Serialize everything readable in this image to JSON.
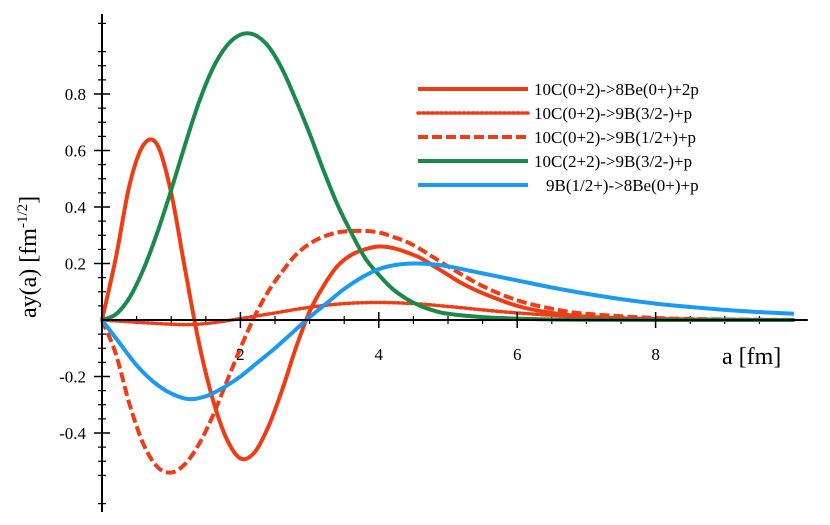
{
  "chart_data": {
    "type": "line",
    "xlabel": "a [fm]",
    "ylabel_main": "ay(a) [fm",
    "ylabel_exp": "-1/2",
    "ylabel_close": "]",
    "xlim": [
      0,
      10
    ],
    "ylim": [
      -0.6,
      1.0
    ],
    "x_ticks": [
      {
        "value": 2,
        "label": "2"
      },
      {
        "value": 4,
        "label": "4"
      },
      {
        "value": 6,
        "label": "6"
      },
      {
        "value": 8,
        "label": "8"
      }
    ],
    "y_ticks": [
      {
        "value": 0.8,
        "label": "0.8"
      },
      {
        "value": 0.6,
        "label": "0.6"
      },
      {
        "value": 0.4,
        "label": "0.4"
      },
      {
        "value": 0.2,
        "label": "0.2"
      },
      {
        "value": -0.2,
        "label": "-0.2"
      },
      {
        "value": -0.4,
        "label": "-0.4"
      }
    ],
    "legend_position": "top-right",
    "series": [
      {
        "name": "10C(0+2)->8Be(0+)+2p",
        "color": "#f03c14",
        "style": "solid",
        "x": [
          0,
          0.2,
          0.4,
          0.6,
          0.8,
          1.0,
          1.2,
          1.4,
          1.6,
          1.8,
          2.0,
          2.2,
          2.4,
          2.6,
          2.8,
          3.0,
          3.2,
          3.4,
          3.6,
          3.8,
          4.0,
          4.2,
          4.4,
          4.6,
          4.8,
          5.0,
          5.2,
          5.5,
          6.0,
          6.5,
          7.0,
          7.5,
          8.0,
          9.0,
          10.0
        ],
        "y": [
          0,
          0.22,
          0.48,
          0.62,
          0.62,
          0.45,
          0.18,
          -0.08,
          -0.28,
          -0.42,
          -0.49,
          -0.47,
          -0.38,
          -0.25,
          -0.1,
          0.03,
          0.12,
          0.19,
          0.23,
          0.25,
          0.26,
          0.255,
          0.24,
          0.22,
          0.19,
          0.16,
          0.13,
          0.095,
          0.05,
          0.025,
          0.012,
          0.006,
          0.003,
          0.001,
          0
        ]
      },
      {
        "name": "10C(0+2)->9B(3/2-)+p",
        "color": "#f03c14",
        "style": "dotted",
        "x": [
          0,
          0.5,
          1.0,
          1.3,
          1.6,
          2.0,
          2.5,
          3.0,
          3.5,
          4.0,
          4.5,
          5.0,
          5.5,
          6.0,
          7.0,
          8.0,
          10.0
        ],
        "y": [
          0,
          -0.008,
          -0.015,
          -0.016,
          -0.01,
          0.005,
          0.025,
          0.045,
          0.058,
          0.062,
          0.058,
          0.048,
          0.036,
          0.025,
          0.01,
          0.004,
          0
        ]
      },
      {
        "name": "10C(0+2)->9B(1/2+)+p",
        "color": "#f03c14",
        "style": "dashed",
        "x": [
          0,
          0.2,
          0.4,
          0.6,
          0.8,
          1.0,
          1.2,
          1.4,
          1.6,
          1.8,
          2.0,
          2.2,
          2.4,
          2.6,
          2.8,
          3.0,
          3.2,
          3.4,
          3.6,
          3.8,
          4.0,
          4.2,
          4.5,
          5.0,
          5.5,
          6.0,
          6.5,
          7.0,
          8.0,
          9.0,
          10.0
        ],
        "y": [
          0,
          -0.12,
          -0.3,
          -0.44,
          -0.52,
          -0.54,
          -0.51,
          -0.44,
          -0.34,
          -0.22,
          -0.1,
          0.01,
          0.1,
          0.17,
          0.23,
          0.27,
          0.295,
          0.31,
          0.315,
          0.315,
          0.31,
          0.295,
          0.265,
          0.19,
          0.12,
          0.07,
          0.04,
          0.022,
          0.007,
          0.002,
          0
        ]
      },
      {
        "name": "10C(2+2)->9B(3/2-)+p",
        "color": "#1a8a4a",
        "style": "solid",
        "x": [
          0,
          0.2,
          0.4,
          0.6,
          0.8,
          1.0,
          1.2,
          1.4,
          1.6,
          1.8,
          2.0,
          2.2,
          2.4,
          2.6,
          2.8,
          3.0,
          3.2,
          3.4,
          3.6,
          3.8,
          4.0,
          4.2,
          4.4,
          4.6,
          4.8,
          5.0,
          5.5,
          6.0,
          6.5,
          7.0,
          8.0,
          10.0
        ],
        "y": [
          0,
          0.02,
          0.08,
          0.18,
          0.31,
          0.46,
          0.62,
          0.77,
          0.89,
          0.97,
          1.01,
          1.01,
          0.97,
          0.89,
          0.78,
          0.66,
          0.53,
          0.41,
          0.31,
          0.22,
          0.16,
          0.11,
          0.075,
          0.05,
          0.033,
          0.022,
          0.01,
          0.005,
          0.002,
          0.001,
          0,
          0
        ]
      },
      {
        "name": "9B(1/2+)->8Be(0+)+p",
        "color": "#1a9af0",
        "style": "solid",
        "x": [
          0,
          0.25,
          0.5,
          0.75,
          1.0,
          1.25,
          1.5,
          1.75,
          2.0,
          2.25,
          2.5,
          2.75,
          3.0,
          3.25,
          3.5,
          3.75,
          4.0,
          4.25,
          4.5,
          4.75,
          5.0,
          5.5,
          6.0,
          6.5,
          7.0,
          7.5,
          8.0,
          8.5,
          9.0,
          9.5,
          10.0
        ],
        "y": [
          0,
          -0.08,
          -0.16,
          -0.22,
          -0.26,
          -0.28,
          -0.27,
          -0.24,
          -0.2,
          -0.15,
          -0.1,
          -0.045,
          0.01,
          0.06,
          0.11,
          0.15,
          0.18,
          0.195,
          0.2,
          0.198,
          0.19,
          0.165,
          0.14,
          0.115,
          0.093,
          0.074,
          0.058,
          0.046,
          0.036,
          0.028,
          0.022
        ]
      }
    ]
  }
}
